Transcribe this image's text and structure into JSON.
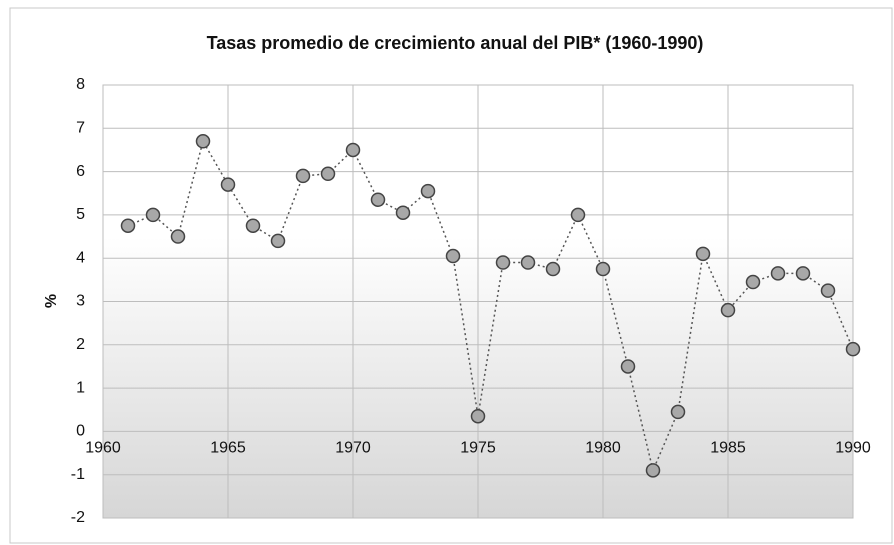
{
  "chart_data": {
    "type": "line",
    "title": "Tasas promedio de crecimiento anual del PIB* (1960-1990)",
    "y_label": "%",
    "x": [
      1961,
      1962,
      1963,
      1964,
      1965,
      1966,
      1967,
      1968,
      1969,
      1970,
      1971,
      1972,
      1973,
      1974,
      1975,
      1976,
      1977,
      1978,
      1979,
      1980,
      1981,
      1982,
      1983,
      1984,
      1985,
      1986,
      1987,
      1988,
      1989,
      1990
    ],
    "series": [
      {
        "name": "PIB",
        "color": "#a8a8a8",
        "values": [
          4.75,
          5.0,
          4.5,
          6.7,
          5.7,
          4.75,
          4.4,
          5.9,
          5.95,
          6.5,
          5.35,
          5.05,
          5.55,
          4.05,
          0.35,
          3.9,
          3.9,
          3.75,
          5.0,
          3.75,
          1.5,
          -0.9,
          0.45,
          4.1,
          2.8,
          3.45,
          3.65,
          3.65,
          3.25,
          1.9
        ]
      }
    ],
    "xlim": [
      1960,
      1990
    ],
    "xticks": [
      1960,
      1965,
      1970,
      1975,
      1980,
      1985,
      1990
    ],
    "ylim": [
      -2,
      8
    ],
    "yticks": [
      -2,
      -1,
      0,
      1,
      2,
      3,
      4,
      5,
      6,
      7,
      8
    ],
    "grid": true
  }
}
